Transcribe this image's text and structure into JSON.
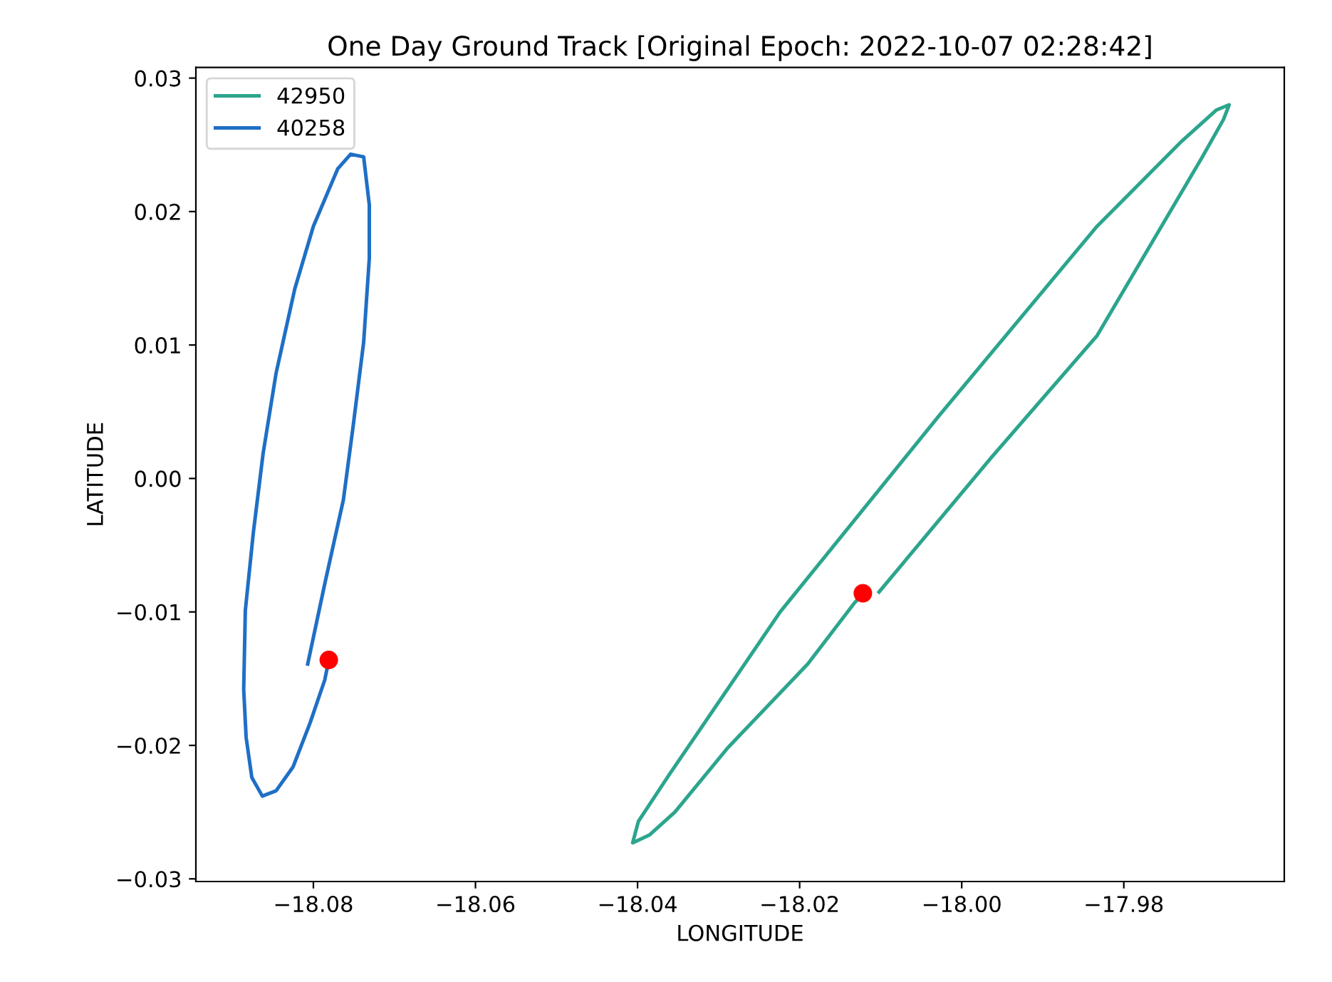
{
  "chart_data": {
    "type": "line",
    "title": "One Day Ground Track [Original Epoch: 2022-10-07 02:28:42]",
    "xlabel": "LONGITUDE",
    "ylabel": "LATITUDE",
    "xlim": [
      -18.0945,
      -17.9602
    ],
    "ylim": [
      -0.0302,
      0.0308
    ],
    "xticks": [
      {
        "value": -18.08,
        "label": "−18.08"
      },
      {
        "value": -18.06,
        "label": "−18.06"
      },
      {
        "value": -18.04,
        "label": "−18.04"
      },
      {
        "value": -18.02,
        "label": "−18.02"
      },
      {
        "value": -18.0,
        "label": "−18.00"
      },
      {
        "value": -17.98,
        "label": "−17.98"
      }
    ],
    "yticks": [
      {
        "value": -0.03,
        "label": "−0.03"
      },
      {
        "value": -0.02,
        "label": "−0.02"
      },
      {
        "value": -0.01,
        "label": "−0.01"
      },
      {
        "value": 0.0,
        "label": "0.00"
      },
      {
        "value": 0.01,
        "label": "0.01"
      },
      {
        "value": 0.02,
        "label": "0.02"
      },
      {
        "value": 0.03,
        "label": "0.03"
      }
    ],
    "legend": "top left",
    "series": [
      {
        "name": "42950",
        "color": "#2ca58d",
        "x": [
          -18.0102,
          -17.9963,
          -17.9833,
          -17.9703,
          -17.9677,
          -17.967,
          -17.9686,
          -17.9728,
          -17.9833,
          -18.0028,
          -18.0224,
          -18.0361,
          -18.0399,
          -18.0406,
          -18.0385,
          -18.0354,
          -18.0289,
          -18.019,
          -18.0132,
          -18.0122
        ],
        "values": [
          -0.0085,
          0.0016,
          0.0107,
          0.0241,
          0.0269,
          0.028,
          0.0276,
          0.0253,
          0.0189,
          0.0047,
          -0.01,
          -0.0222,
          -0.0257,
          -0.0273,
          -0.0267,
          -0.025,
          -0.0202,
          -0.0139,
          -0.0093,
          -0.0086
        ]
      },
      {
        "name": "40258",
        "color": "#1f6fc5",
        "x": [
          -18.0807,
          -18.0786,
          -18.0763,
          -18.0751,
          -18.0738,
          -18.0731,
          -18.0731,
          -18.0738,
          -18.0754,
          -18.077,
          -18.08,
          -18.0823,
          -18.0846,
          -18.0862,
          -18.0874,
          -18.0884,
          -18.0886,
          -18.0883,
          -18.0876,
          -18.0863,
          -18.0846,
          -18.0825,
          -18.0804,
          -18.0786,
          -18.0781
        ],
        "values": [
          -0.0139,
          -0.0079,
          -0.0016,
          0.0039,
          0.0102,
          0.0165,
          0.0205,
          0.0241,
          0.0243,
          0.0232,
          0.0189,
          0.0142,
          0.0079,
          0.0019,
          -0.004,
          -0.0099,
          -0.0158,
          -0.0194,
          -0.0224,
          -0.0238,
          -0.0234,
          -0.0216,
          -0.0183,
          -0.0151,
          -0.0136
        ]
      },
      {
        "color": "#ff0000",
        "type": "scatter",
        "marker": "circle",
        "x": [
          -18.0122,
          -18.0781
        ],
        "values": [
          -0.0086,
          -0.0136
        ]
      }
    ]
  }
}
